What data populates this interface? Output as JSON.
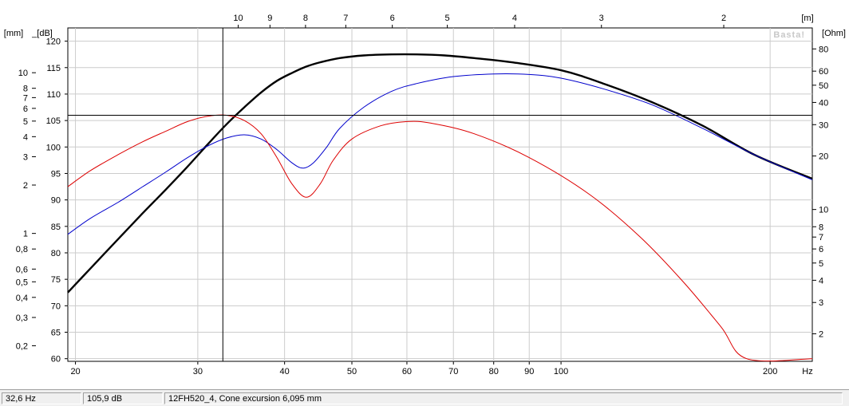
{
  "chart_data": {
    "type": "line",
    "watermark": "Basta!",
    "x_axis": {
      "unit": "Hz",
      "scale": "log",
      "range": [
        19.5,
        230
      ],
      "ticks": [
        20,
        30,
        40,
        50,
        60,
        70,
        80,
        90,
        100,
        200
      ]
    },
    "top_axis": {
      "unit": "[m]",
      "ticks": [
        10,
        9,
        8,
        7,
        6,
        5,
        4,
        3,
        2
      ],
      "speed_of_sound": 343
    },
    "left_axis_db": {
      "unit": "_[dB]",
      "range": [
        59.5,
        122.5
      ],
      "ticks": [
        60,
        65,
        70,
        75,
        80,
        85,
        90,
        95,
        100,
        105,
        110,
        115,
        120
      ]
    },
    "left_axis_mm": {
      "unit": "[mm]",
      "scale": "log",
      "range": [
        0.16,
        19
      ],
      "ticks": [
        "0,2",
        "0,3",
        "0,4",
        "0,5",
        "0,6",
        "0,8",
        "1",
        "2",
        "3",
        "4",
        "5",
        "6",
        "7",
        "8",
        "10"
      ]
    },
    "right_axis_ohm": {
      "unit": "[Ohm]",
      "scale": "log",
      "range": [
        1.4,
        105
      ],
      "ticks": [
        2,
        3,
        4,
        5,
        6,
        7,
        8,
        10,
        20,
        30,
        40,
        50,
        60,
        80
      ]
    },
    "grid": true,
    "cursor": {
      "x_hz": 32.6,
      "y_db": 106
    },
    "series": [
      {
        "color": "#000000",
        "axis": "dB",
        "points": [
          [
            19.5,
            72.5
          ],
          [
            21,
            77
          ],
          [
            23,
            82.5
          ],
          [
            25,
            87.5
          ],
          [
            27,
            92
          ],
          [
            29,
            96.3
          ],
          [
            31,
            100.5
          ],
          [
            33,
            104.3
          ],
          [
            35,
            107.5
          ],
          [
            37,
            110.3
          ],
          [
            39,
            112.5
          ],
          [
            41,
            114
          ],
          [
            43,
            115.2
          ],
          [
            45,
            116
          ],
          [
            48,
            116.8
          ],
          [
            52,
            117.3
          ],
          [
            57,
            117.5
          ],
          [
            62,
            117.5
          ],
          [
            68,
            117.3
          ],
          [
            75,
            116.8
          ],
          [
            85,
            116
          ],
          [
            100,
            114.5
          ],
          [
            115,
            112
          ],
          [
            135,
            108.5
          ],
          [
            160,
            104
          ],
          [
            190,
            98.5
          ],
          [
            230,
            94
          ]
        ]
      },
      {
        "color": "#0000cc",
        "axis": "dB",
        "points": [
          [
            19.5,
            83.5
          ],
          [
            21,
            86.5
          ],
          [
            23,
            89.5
          ],
          [
            25,
            92.5
          ],
          [
            27,
            95.3
          ],
          [
            29,
            98
          ],
          [
            31,
            100.2
          ],
          [
            33,
            101.7
          ],
          [
            35,
            102.3
          ],
          [
            37,
            101.5
          ],
          [
            39,
            99.5
          ],
          [
            41,
            97
          ],
          [
            42.5,
            96
          ],
          [
            44,
            97
          ],
          [
            46,
            100
          ],
          [
            48,
            103.5
          ],
          [
            52,
            107.5
          ],
          [
            57,
            110.5
          ],
          [
            62,
            112
          ],
          [
            70,
            113.3
          ],
          [
            80,
            113.8
          ],
          [
            90,
            113.7
          ],
          [
            100,
            113
          ],
          [
            115,
            111
          ],
          [
            135,
            108
          ],
          [
            160,
            103.5
          ],
          [
            190,
            98.5
          ],
          [
            230,
            93.8
          ]
        ]
      },
      {
        "color": "#dd0000",
        "axis": "mm",
        "points": [
          [
            19.5,
            92.5
          ],
          [
            21,
            95.5
          ],
          [
            23,
            98.5
          ],
          [
            25,
            101
          ],
          [
            27,
            103
          ],
          [
            29,
            104.8
          ],
          [
            31,
            105.8
          ],
          [
            33,
            106
          ],
          [
            35,
            105
          ],
          [
            37,
            102.5
          ],
          [
            39,
            98
          ],
          [
            41,
            93
          ],
          [
            43,
            90.5
          ],
          [
            45,
            93
          ],
          [
            47,
            97.5
          ],
          [
            50,
            101.5
          ],
          [
            55,
            104
          ],
          [
            60,
            104.8
          ],
          [
            65,
            104.5
          ],
          [
            75,
            102.5
          ],
          [
            90,
            98
          ],
          [
            110,
            91
          ],
          [
            130,
            83
          ],
          [
            150,
            74.5
          ],
          [
            170,
            66
          ],
          [
            185,
            60
          ],
          [
            230,
            60
          ]
        ]
      }
    ]
  },
  "statusbar": {
    "frequency": "32,6 Hz",
    "level": "105,9 dB",
    "info": "12FH520_4, Cone excursion 6,095 mm"
  }
}
